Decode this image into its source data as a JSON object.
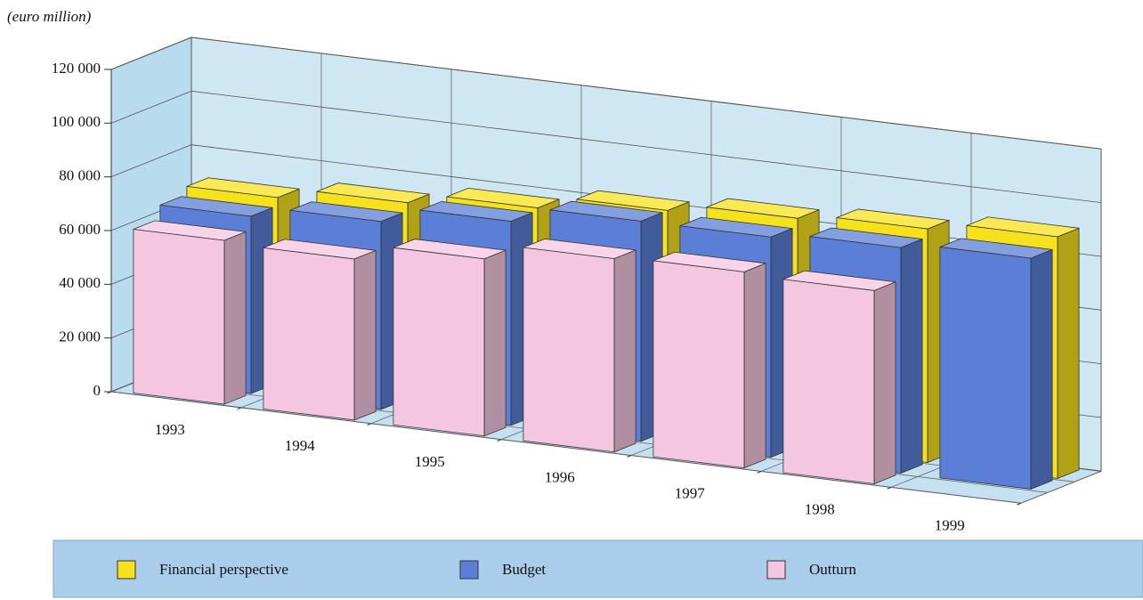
{
  "chart_data": {
    "type": "bar3d",
    "subtitle": "(euro million)",
    "categories": [
      "1993",
      "1994",
      "1995",
      "1996",
      "1997",
      "1998",
      "1999"
    ],
    "series": [
      {
        "name": "Financial perspective",
        "color": "#f5e11c",
        "values": [
          69000,
          73000,
          77000,
          82000,
          85000,
          87000,
          90000
        ]
      },
      {
        "name": "Budget",
        "color": "#5b7fd6",
        "values": [
          66000,
          70000,
          76000,
          82000,
          82000,
          84000,
          86000
        ]
      },
      {
        "name": "Outturn",
        "color": "#f4c6e0",
        "values": [
          61000,
          60000,
          66000,
          72000,
          73000,
          72000,
          null
        ]
      }
    ],
    "ylim": [
      0,
      120000
    ],
    "yticks": [
      0,
      {
        "value": 20000,
        "label": "20 000"
      },
      {
        "value": 40000,
        "label": "40 000"
      },
      {
        "value": 60000,
        "label": "60 000"
      },
      {
        "value": 80000,
        "label": "80 000"
      },
      {
        "value": 100000,
        "label": "100 000"
      },
      {
        "value": 120000,
        "label": "120 000"
      }
    ],
    "grid": true
  }
}
